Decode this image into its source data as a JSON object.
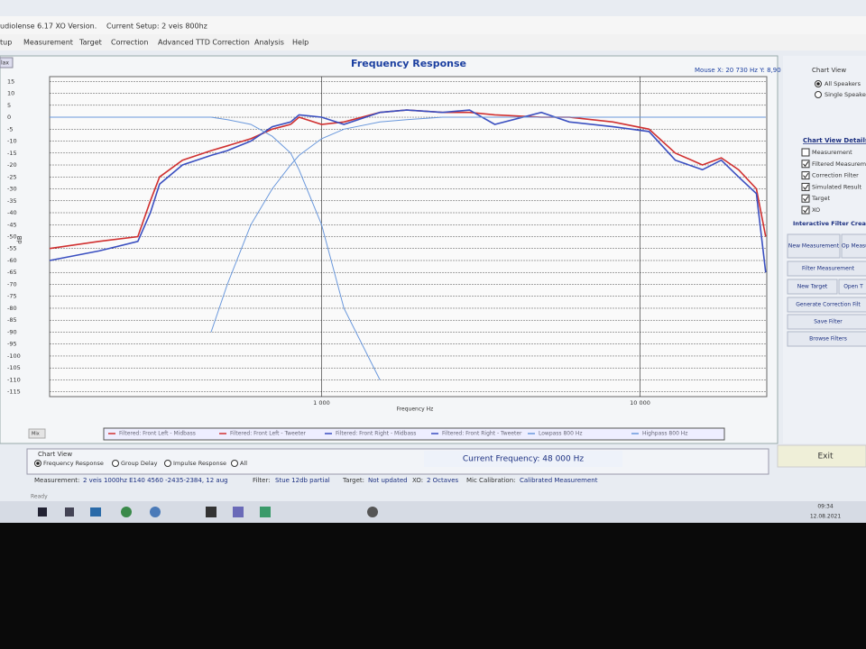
{
  "title_bar": {
    "app": "udiolense 6.17 XO Version.",
    "setup": "Current Setup: 2 veis 800hz"
  },
  "menu": [
    "tup",
    "Measurement",
    "Target",
    "Correction",
    "Advanced TTD Correction",
    "Analysis",
    "Help"
  ],
  "max_button": "lax",
  "mix_button": "Mix",
  "mouse_readout": "Mouse X: 20 730 Hz  Y: 8,90 dB",
  "chart_data": {
    "type": "line",
    "title": "Frequency Response",
    "x_label": "Frequency Hz",
    "y_label": "dB",
    "log_x": true,
    "grid": true,
    "x": [
      140,
      200,
      265,
      290,
      310,
      366,
      450,
      506,
      600,
      700,
      800,
      850,
      1000,
      1176,
      1525,
      1852,
      2400,
      2915,
      3500,
      4900,
      6000,
      8220,
      10670,
      12900,
      15700,
      18000,
      20400,
      23200,
      24800
    ],
    "xlim": [
      140,
      25000
    ],
    "xticks": [
      {
        "value": 1000,
        "label": "1 000"
      },
      {
        "value": 10000,
        "label": "10 000"
      }
    ],
    "ylim": [
      -117,
      17
    ],
    "yticks": [
      15,
      10,
      5,
      0,
      -5,
      -10,
      -15,
      -20,
      -25,
      -30,
      -35,
      -40,
      -45,
      -50,
      -55,
      -60,
      -65,
      -70,
      -75,
      -80,
      -85,
      -90,
      -95,
      -100,
      -105,
      -110,
      -115
    ],
    "series": [
      {
        "name": "Filtered: Front Left - Midbass",
        "color": "#d03030",
        "values": [
          -55,
          -52,
          -50,
          -35,
          -25,
          -18,
          -14,
          -12,
          -9,
          -5,
          -3,
          null,
          null,
          null,
          null,
          null,
          null,
          null,
          null,
          null,
          null,
          null,
          null,
          null,
          null,
          null,
          null,
          null,
          null
        ]
      },
      {
        "name": "Filtered: Front Left - Tweeter",
        "color": "#d03030",
        "values": [
          null,
          null,
          null,
          null,
          null,
          null,
          null,
          null,
          null,
          null,
          -3,
          0,
          -3,
          -2,
          2,
          3,
          2,
          2,
          1,
          0,
          0,
          -2,
          -5,
          -15,
          -20,
          -17,
          -22,
          -30,
          -50
        ]
      },
      {
        "name": "Filtered: Front Right - Midbass",
        "color": "#3a4fc0",
        "values": [
          -60,
          -56,
          -52,
          -40,
          -28,
          -20,
          -16,
          -14,
          -10,
          -4,
          -2,
          null,
          null,
          null,
          null,
          null,
          null,
          null,
          null,
          null,
          null,
          null,
          null,
          null,
          null,
          null,
          null,
          null,
          null
        ]
      },
      {
        "name": "Filtered: Front Right - Tweeter",
        "color": "#3a4fc0",
        "values": [
          null,
          null,
          null,
          null,
          null,
          null,
          null,
          null,
          null,
          null,
          -2,
          1,
          0,
          -3,
          2,
          3,
          2,
          3,
          -3,
          2,
          -2,
          -4,
          -6,
          -18,
          -22,
          -18,
          -25,
          -32,
          -65
        ]
      },
      {
        "name": "Lowpass 800 Hz",
        "color": "#6a98dc",
        "values": [
          0,
          0,
          0,
          0,
          0,
          0,
          0,
          -1,
          -3,
          -8,
          -15,
          -22,
          -45,
          -80,
          -110,
          null,
          null,
          null,
          null,
          null,
          null,
          null,
          null,
          null,
          null,
          null,
          null,
          null,
          null
        ]
      },
      {
        "name": "Highpass 800 Hz",
        "color": "#6a98dc",
        "values": [
          null,
          null,
          null,
          null,
          null,
          null,
          -90,
          -70,
          -45,
          -30,
          -20,
          -16,
          -9,
          -5,
          -2,
          -1,
          0,
          0,
          0,
          0,
          0,
          0,
          0,
          0,
          0,
          0,
          0,
          0,
          0
        ]
      }
    ]
  },
  "right_panel": {
    "chart_view_title": "Chart View",
    "speakers": [
      {
        "label": "All Speakers",
        "selected": true
      },
      {
        "label": "Single Speaker",
        "selected": false
      }
    ],
    "details_title": "Chart View Details:",
    "details": [
      {
        "label": "Measurement",
        "checked": false
      },
      {
        "label": "Filtered Measurement",
        "checked": true
      },
      {
        "label": "Correction Filter",
        "checked": true
      },
      {
        "label": "Simulated Result",
        "checked": true
      },
      {
        "label": "Target",
        "checked": true
      },
      {
        "label": "XO",
        "checked": true
      }
    ],
    "filter_title": "Interactive Filter Creation",
    "buttons": [
      "New Measurement",
      "Op Measu",
      "Filter Measurement",
      "New Target",
      "Open T",
      "Generate Correction Filt",
      "Save Filter",
      "Browse Filters"
    ]
  },
  "bottom": {
    "chart_view_title": "Chart View",
    "views": [
      {
        "label": "Frequency Response",
        "selected": true
      },
      {
        "label": "Group Delay",
        "selected": false
      },
      {
        "label": "Impulse Response",
        "selected": false
      },
      {
        "label": "All",
        "selected": false
      }
    ],
    "current_frequency": "Current Frequency: 48 000 Hz",
    "exit": "Exit"
  },
  "status": {
    "measurement_label": "Measurement:",
    "measurement": "2 veis 1000hz E140 4560 -2435-2384, 12 aug",
    "filter_label": "Filter:",
    "filter": "Stue 12db partial",
    "target_label": "Target:",
    "target": "Not updated",
    "xo_label": "XO:",
    "xo": "2 Octaves",
    "mic_label": "Mic Calibration:",
    "mic": "Calibrated Measurement",
    "ready": "Ready"
  },
  "taskbar": {
    "time": "09:34",
    "date": "12.08.2021"
  }
}
